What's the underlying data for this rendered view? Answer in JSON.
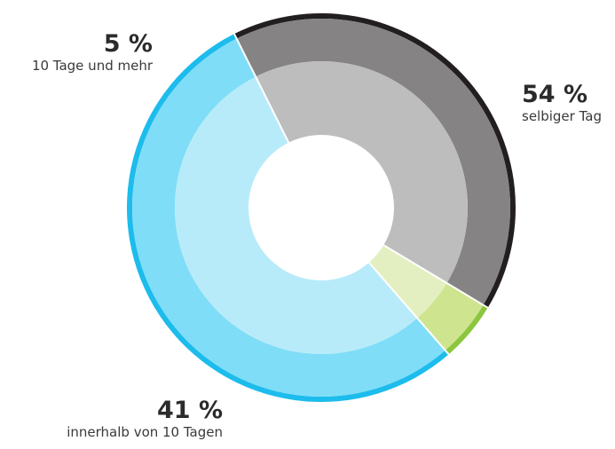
{
  "chart_data": {
    "type": "pie",
    "variant": "donut",
    "categories": [
      "selbiger Tag",
      "innerhalb von 10 Tagen",
      "10 Tage und mehr"
    ],
    "values": [
      54,
      41,
      5
    ],
    "value_labels": [
      "54 %",
      "41 %",
      "5 %"
    ],
    "colors": {
      "outer": [
        "#7fddf7",
        "#858383",
        "#cfe48f"
      ],
      "inner": [
        "#b8ebf9",
        "#bdbdbd",
        "#e3efc0"
      ],
      "rim": [
        "#1cbcec",
        "#231f20",
        "#8cc63f"
      ]
    },
    "legend": "none"
  }
}
